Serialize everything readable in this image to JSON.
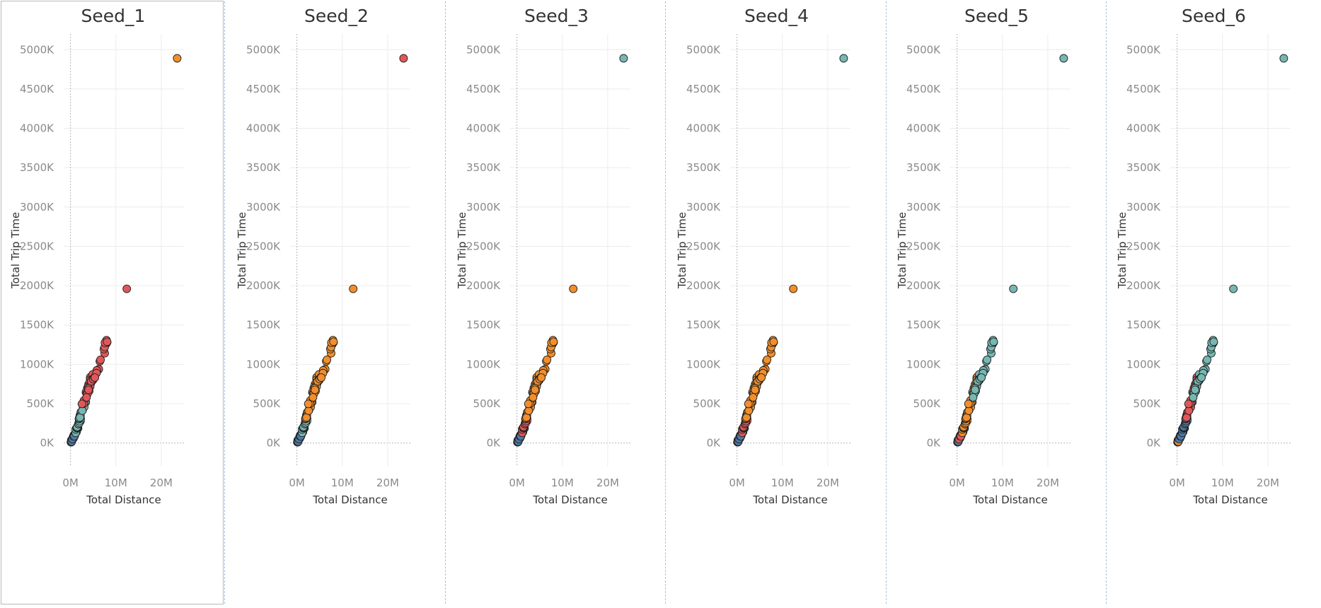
{
  "colors": {
    "red": "#e15759",
    "orange": "#f28e2b",
    "teal": "#76b7b2",
    "blue": "#4e79a7",
    "point_outline": "#222222",
    "gridline": "#ececec",
    "zero_line": "#b5b5b5",
    "divider": "#a9c0de"
  },
  "chart_data": [
    {
      "type": "scatter",
      "title": "Seed_1",
      "xlabel": "Total Distance",
      "ylabel": "Total Trip Time",
      "xlim": [
        -1.5,
        25
      ],
      "ylim": [
        -300,
        5200
      ],
      "xticks": [
        0,
        10,
        20
      ],
      "xtick_labels": [
        "0M",
        "10M",
        "20M"
      ],
      "yticks": [
        0,
        500,
        1000,
        1500,
        2000,
        2500,
        3000,
        3500,
        4000,
        4500,
        5000
      ],
      "ytick_labels": [
        "0K",
        "500K",
        "1000K",
        "1500K",
        "2000K",
        "2500K",
        "3000K",
        "3500K",
        "4000K",
        "4500K",
        "5000K"
      ],
      "grid": true,
      "outliers": [
        {
          "x": 23.5,
          "y": 4890,
          "color": "orange"
        },
        {
          "x": 12.4,
          "y": 1960,
          "color": "red"
        }
      ],
      "cluster_colors": [
        "blue",
        "blue",
        "teal",
        "teal",
        "red",
        "red",
        "red"
      ]
    },
    {
      "type": "scatter",
      "title": "Seed_2",
      "xlabel": "Total Distance",
      "ylabel": "Total Trip Time",
      "xlim": [
        -1.5,
        25
      ],
      "ylim": [
        -300,
        5200
      ],
      "xticks": [
        0,
        10,
        20
      ],
      "xtick_labels": [
        "0M",
        "10M",
        "20M"
      ],
      "yticks": [
        0,
        500,
        1000,
        1500,
        2000,
        2500,
        3000,
        3500,
        4000,
        4500,
        5000
      ],
      "ytick_labels": [
        "0K",
        "500K",
        "1000K",
        "1500K",
        "2000K",
        "2500K",
        "3000K",
        "3500K",
        "4000K",
        "4500K",
        "5000K"
      ],
      "grid": true,
      "outliers": [
        {
          "x": 23.5,
          "y": 4890,
          "color": "red"
        },
        {
          "x": 12.4,
          "y": 1960,
          "color": "orange"
        }
      ],
      "cluster_colors": [
        "blue",
        "blue",
        "teal",
        "orange",
        "orange",
        "orange",
        "orange"
      ]
    },
    {
      "type": "scatter",
      "title": "Seed_3",
      "xlabel": "Total Distance",
      "ylabel": "Total Trip Time",
      "xlim": [
        -1.5,
        25
      ],
      "ylim": [
        -300,
        5200
      ],
      "xticks": [
        0,
        10,
        20
      ],
      "xtick_labels": [
        "0M",
        "10M",
        "20M"
      ],
      "yticks": [
        0,
        500,
        1000,
        1500,
        2000,
        2500,
        3000,
        3500,
        4000,
        4500,
        5000
      ],
      "ytick_labels": [
        "0K",
        "500K",
        "1000K",
        "1500K",
        "2000K",
        "2500K",
        "3000K",
        "3500K",
        "4000K",
        "4500K",
        "5000K"
      ],
      "grid": true,
      "outliers": [
        {
          "x": 23.5,
          "y": 4890,
          "color": "teal"
        },
        {
          "x": 12.4,
          "y": 1960,
          "color": "orange"
        }
      ],
      "cluster_colors": [
        "blue",
        "blue",
        "red",
        "orange",
        "orange",
        "orange",
        "orange"
      ]
    },
    {
      "type": "scatter",
      "title": "Seed_4",
      "xlabel": "Total Distance",
      "ylabel": "Total Trip Time",
      "xlim": [
        -1.5,
        25
      ],
      "ylim": [
        -300,
        5200
      ],
      "xticks": [
        0,
        10,
        20
      ],
      "xtick_labels": [
        "0M",
        "10M",
        "20M"
      ],
      "yticks": [
        0,
        500,
        1000,
        1500,
        2000,
        2500,
        3000,
        3500,
        4000,
        4500,
        5000
      ],
      "ytick_labels": [
        "0K",
        "500K",
        "1000K",
        "1500K",
        "2000K",
        "2500K",
        "3000K",
        "3500K",
        "4000K",
        "4500K",
        "5000K"
      ],
      "grid": true,
      "outliers": [
        {
          "x": 23.5,
          "y": 4890,
          "color": "teal"
        },
        {
          "x": 12.4,
          "y": 1960,
          "color": "orange"
        }
      ],
      "cluster_colors": [
        "blue",
        "blue",
        "red",
        "orange",
        "orange",
        "orange",
        "orange"
      ]
    },
    {
      "type": "scatter",
      "title": "Seed_5",
      "xlabel": "Total Distance",
      "ylabel": "Total Trip Time",
      "xlim": [
        -1.5,
        25
      ],
      "ylim": [
        -300,
        5200
      ],
      "xticks": [
        0,
        10,
        20
      ],
      "xtick_labels": [
        "0M",
        "10M",
        "20M"
      ],
      "yticks": [
        0,
        500,
        1000,
        1500,
        2000,
        2500,
        3000,
        3500,
        4000,
        4500,
        5000
      ],
      "ytick_labels": [
        "0K",
        "500K",
        "1000K",
        "1500K",
        "2000K",
        "2500K",
        "3000K",
        "3500K",
        "4000K",
        "4500K",
        "5000K"
      ],
      "grid": true,
      "outliers": [
        {
          "x": 23.5,
          "y": 4890,
          "color": "teal"
        },
        {
          "x": 12.4,
          "y": 1960,
          "color": "teal"
        }
      ],
      "cluster_colors": [
        "blue",
        "red",
        "orange",
        "orange",
        "orange",
        "teal",
        "teal"
      ]
    },
    {
      "type": "scatter",
      "title": "Seed_6",
      "xlabel": "Total Distance",
      "ylabel": "Total Trip Time",
      "xlim": [
        -1.5,
        25
      ],
      "ylim": [
        -300,
        5200
      ],
      "xticks": [
        0,
        10,
        20
      ],
      "xtick_labels": [
        "0M",
        "10M",
        "20M"
      ],
      "yticks": [
        0,
        500,
        1000,
        1500,
        2000,
        2500,
        3000,
        3500,
        4000,
        4500,
        5000
      ],
      "ytick_labels": [
        "0K",
        "500K",
        "1000K",
        "1500K",
        "2000K",
        "2500K",
        "3000K",
        "3500K",
        "4000K",
        "4500K",
        "5000K"
      ],
      "grid": true,
      "outliers": [
        {
          "x": 23.5,
          "y": 4890,
          "color": "teal"
        },
        {
          "x": 12.4,
          "y": 1960,
          "color": "teal"
        }
      ],
      "cluster_colors": [
        "orange",
        "blue",
        "blue",
        "red",
        "red",
        "teal",
        "teal"
      ]
    }
  ]
}
